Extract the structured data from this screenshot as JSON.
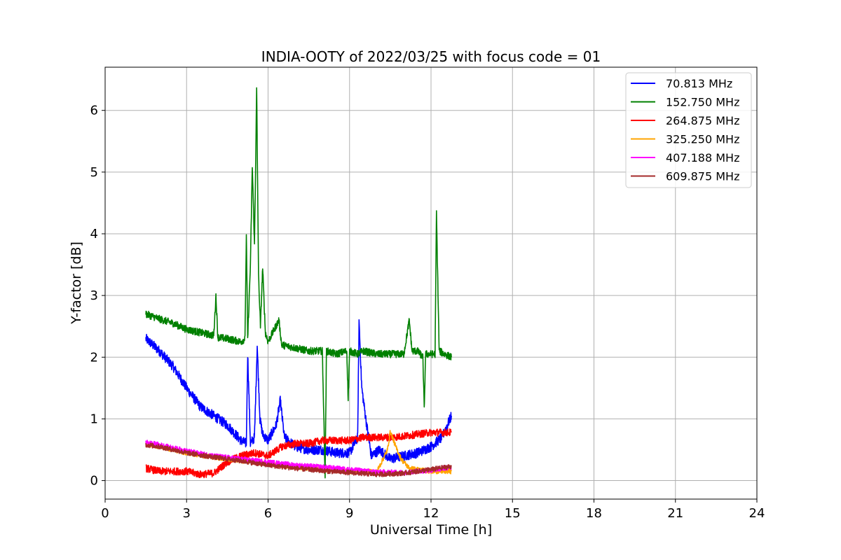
{
  "chart_data": {
    "type": "line",
    "title": "INDIA-OOTY of 2022/03/25 with focus code = 01",
    "xlabel": "Universal Time [h]",
    "ylabel": "Y-factor [dB]",
    "xlim": [
      0,
      24
    ],
    "ylim": [
      -0.3,
      6.7
    ],
    "xticks": [
      0,
      3,
      6,
      9,
      12,
      15,
      18,
      21,
      24
    ],
    "yticks": [
      0,
      1,
      2,
      3,
      4,
      5,
      6
    ],
    "grid": true,
    "legend_position": "top-right",
    "series": [
      {
        "name": "  70.813 MHz",
        "color": "#0000ff",
        "noise": 0.08,
        "points": [
          [
            1.5,
            2.3
          ],
          [
            2.0,
            2.1
          ],
          [
            2.5,
            1.85
          ],
          [
            3.0,
            1.5
          ],
          [
            3.5,
            1.2
          ],
          [
            4.0,
            1.05
          ],
          [
            4.5,
            0.9
          ],
          [
            5.0,
            0.65
          ],
          [
            5.2,
            0.6
          ],
          [
            5.25,
            2.05
          ],
          [
            5.35,
            0.6
          ],
          [
            5.5,
            0.7
          ],
          [
            5.6,
            2.2
          ],
          [
            5.7,
            1.0
          ],
          [
            5.8,
            0.75
          ],
          [
            6.0,
            0.65
          ],
          [
            6.3,
            0.9
          ],
          [
            6.45,
            1.3
          ],
          [
            6.6,
            0.7
          ],
          [
            7.0,
            0.55
          ],
          [
            7.5,
            0.5
          ],
          [
            8.0,
            0.5
          ],
          [
            8.5,
            0.45
          ],
          [
            9.0,
            0.45
          ],
          [
            9.3,
            0.7
          ],
          [
            9.35,
            2.6
          ],
          [
            9.45,
            1.5
          ],
          [
            9.6,
            1.0
          ],
          [
            9.8,
            0.4
          ],
          [
            10.1,
            0.5
          ],
          [
            10.5,
            0.35
          ],
          [
            11.0,
            0.4
          ],
          [
            11.5,
            0.45
          ],
          [
            12.0,
            0.55
          ],
          [
            12.4,
            0.7
          ],
          [
            12.75,
            1.05
          ]
        ]
      },
      {
        "name": "152.750 MHz",
        "color": "#008000",
        "noise": 0.06,
        "points": [
          [
            1.5,
            2.7
          ],
          [
            2.0,
            2.62
          ],
          [
            2.5,
            2.55
          ],
          [
            3.0,
            2.45
          ],
          [
            3.5,
            2.4
          ],
          [
            4.0,
            2.35
          ],
          [
            4.08,
            3.0
          ],
          [
            4.15,
            2.32
          ],
          [
            4.5,
            2.3
          ],
          [
            5.0,
            2.25
          ],
          [
            5.15,
            2.3
          ],
          [
            5.2,
            4.0
          ],
          [
            5.25,
            2.3
          ],
          [
            5.35,
            3.5
          ],
          [
            5.42,
            5.1
          ],
          [
            5.5,
            3.8
          ],
          [
            5.58,
            6.35
          ],
          [
            5.65,
            3.3
          ],
          [
            5.72,
            2.5
          ],
          [
            5.8,
            3.45
          ],
          [
            5.9,
            2.4
          ],
          [
            6.0,
            2.25
          ],
          [
            6.4,
            2.6
          ],
          [
            6.5,
            2.2
          ],
          [
            7.0,
            2.15
          ],
          [
            7.5,
            2.1
          ],
          [
            8.0,
            2.1
          ],
          [
            8.1,
            0.05
          ],
          [
            8.15,
            2.1
          ],
          [
            8.5,
            2.05
          ],
          [
            8.9,
            2.1
          ],
          [
            8.95,
            1.3
          ],
          [
            9.0,
            2.1
          ],
          [
            9.3,
            2.05
          ],
          [
            9.5,
            2.1
          ],
          [
            10.0,
            2.05
          ],
          [
            10.5,
            2.05
          ],
          [
            11.0,
            2.05
          ],
          [
            11.2,
            2.6
          ],
          [
            11.3,
            2.1
          ],
          [
            11.5,
            2.1
          ],
          [
            11.7,
            2.0
          ],
          [
            11.75,
            1.15
          ],
          [
            11.8,
            2.05
          ],
          [
            12.15,
            2.05
          ],
          [
            12.2,
            4.35
          ],
          [
            12.3,
            2.1
          ],
          [
            12.5,
            2.05
          ],
          [
            12.75,
            2.0
          ]
        ]
      },
      {
        "name": "264.875 MHz",
        "color": "#ff0000",
        "noise": 0.06,
        "points": [
          [
            1.5,
            0.2
          ],
          [
            2.0,
            0.15
          ],
          [
            2.5,
            0.15
          ],
          [
            3.0,
            0.15
          ],
          [
            3.5,
            0.1
          ],
          [
            4.0,
            0.12
          ],
          [
            4.5,
            0.3
          ],
          [
            5.0,
            0.4
          ],
          [
            5.5,
            0.45
          ],
          [
            6.0,
            0.4
          ],
          [
            6.5,
            0.55
          ],
          [
            7.0,
            0.6
          ],
          [
            7.5,
            0.6
          ],
          [
            8.0,
            0.65
          ],
          [
            8.5,
            0.65
          ],
          [
            9.0,
            0.65
          ],
          [
            9.5,
            0.7
          ],
          [
            10.0,
            0.7
          ],
          [
            10.5,
            0.7
          ],
          [
            11.0,
            0.72
          ],
          [
            11.5,
            0.75
          ],
          [
            12.0,
            0.78
          ],
          [
            12.5,
            0.78
          ],
          [
            12.75,
            0.78
          ]
        ]
      },
      {
        "name": "325.250 MHz",
        "color": "#ffa500",
        "noise": 0.04,
        "points": [
          [
            1.5,
            0.6
          ],
          [
            2.0,
            0.55
          ],
          [
            3.0,
            0.45
          ],
          [
            4.0,
            0.38
          ],
          [
            5.0,
            0.32
          ],
          [
            5.5,
            0.3
          ],
          [
            6.0,
            0.27
          ],
          [
            7.0,
            0.22
          ],
          [
            8.0,
            0.18
          ],
          [
            9.0,
            0.15
          ],
          [
            10.0,
            0.14
          ],
          [
            10.4,
            0.5
          ],
          [
            10.5,
            0.8
          ],
          [
            10.7,
            0.55
          ],
          [
            10.9,
            0.35
          ],
          [
            11.2,
            0.2
          ],
          [
            11.5,
            0.18
          ],
          [
            12.0,
            0.15
          ],
          [
            12.75,
            0.15
          ]
        ]
      },
      {
        "name": "407.188 MHz",
        "color": "#ff00ff",
        "noise": 0.04,
        "points": [
          [
            1.5,
            0.62
          ],
          [
            2.0,
            0.58
          ],
          [
            3.0,
            0.48
          ],
          [
            4.0,
            0.4
          ],
          [
            5.0,
            0.35
          ],
          [
            6.0,
            0.3
          ],
          [
            7.0,
            0.25
          ],
          [
            8.0,
            0.22
          ],
          [
            9.0,
            0.18
          ],
          [
            10.0,
            0.14
          ],
          [
            11.0,
            0.13
          ],
          [
            12.0,
            0.17
          ],
          [
            12.75,
            0.22
          ]
        ]
      },
      {
        "name": "609.875 MHz",
        "color": "#a52a2a",
        "noise": 0.04,
        "points": [
          [
            1.5,
            0.58
          ],
          [
            2.0,
            0.55
          ],
          [
            3.0,
            0.45
          ],
          [
            4.0,
            0.38
          ],
          [
            5.0,
            0.32
          ],
          [
            6.0,
            0.25
          ],
          [
            7.0,
            0.2
          ],
          [
            8.0,
            0.16
          ],
          [
            9.0,
            0.13
          ],
          [
            10.0,
            0.1
          ],
          [
            11.0,
            0.12
          ],
          [
            12.0,
            0.18
          ],
          [
            12.75,
            0.23
          ]
        ]
      }
    ]
  }
}
